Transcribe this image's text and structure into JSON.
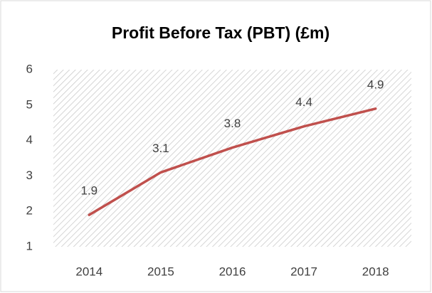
{
  "chart_data": {
    "type": "line",
    "title": "Profit Before Tax (PBT) (£m)",
    "categories": [
      "2014",
      "2015",
      "2016",
      "2017",
      "2018"
    ],
    "series": [
      {
        "name": "PBT",
        "color": "#c0504d",
        "values": [
          1.9,
          3.1,
          3.8,
          4.4,
          4.9
        ]
      }
    ],
    "ylim": [
      1,
      6
    ],
    "yticks": [
      1,
      2,
      3,
      4,
      5,
      6
    ],
    "data_labels": true
  }
}
